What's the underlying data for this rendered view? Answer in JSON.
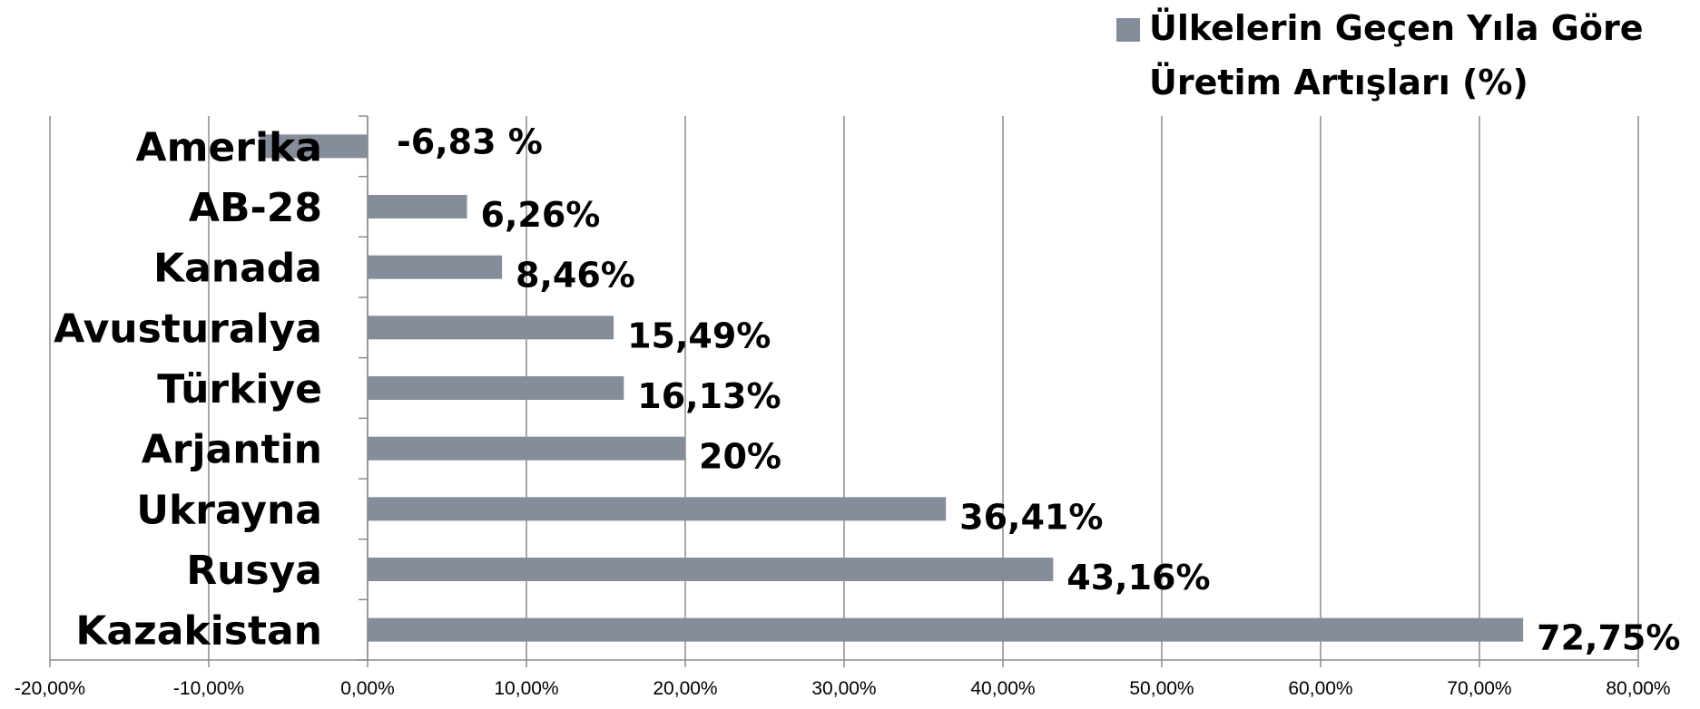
{
  "chart_data": {
    "type": "bar",
    "orientation": "horizontal",
    "categories": [
      "Amerika",
      "AB-28",
      "Kanada",
      "Avusturalya",
      "Türkiye",
      "Arjantin",
      "Ukrayna",
      "Rusya",
      "Kazakistan"
    ],
    "series": [
      {
        "name": "Ülkelerin Geçen Yıla Göre Üretim Artışları (%)",
        "name_lines": [
          "Ülkelerin Geçen Yıla Göre",
          "Üretim Artışları (%)"
        ],
        "values": [
          -6.83,
          6.26,
          8.46,
          15.49,
          16.13,
          20,
          36.41,
          43.16,
          72.75
        ],
        "data_labels": [
          "-6,83  %",
          "6,26%",
          "8,46%",
          "15,49%",
          "16,13%",
          "20%",
          "36,41%",
          "43,16%",
          "72,75%"
        ],
        "color": "#858d9b"
      }
    ],
    "xlim": [
      -20,
      80
    ],
    "x_ticks": [
      -20,
      -10,
      0,
      10,
      20,
      30,
      40,
      50,
      60,
      70,
      80
    ],
    "x_tick_labels": [
      "-20,00%",
      "-10,00%",
      "0,00%",
      "10,00%",
      "20,00%",
      "30,00%",
      "40,00%",
      "50,00%",
      "60,00%",
      "70,00%",
      "80,00%"
    ],
    "grid": true,
    "legend_position": "top-right",
    "colors": {
      "bar": "#858d9b",
      "grid": "#8c8c8c",
      "text": "#000000"
    }
  }
}
